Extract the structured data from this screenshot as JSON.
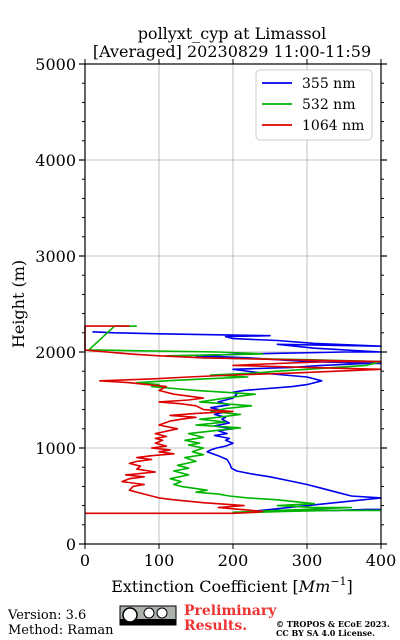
{
  "chart_data": {
    "type": "line",
    "title_line1": "pollyxt_cyp at Limassol",
    "title_line2": "[Averaged] 20230829 11:00-11:59",
    "xlabel_prefix": "Extinction Coefficient [",
    "xlabel_unit": "Mm",
    "xlabel_exp": "−1",
    "xlabel_suffix": "]",
    "ylabel": "Height (m)",
    "xlim": [
      0,
      400
    ],
    "ylim": [
      0,
      5000
    ],
    "x_ticks": [
      "0",
      "100",
      "200",
      "300",
      "400"
    ],
    "y_ticks": [
      "0",
      "1000",
      "2000",
      "3000",
      "4000",
      "5000"
    ],
    "grid": true,
    "legend_position": "top-right",
    "series": [
      {
        "name": "355 nm",
        "color": "#0000ee",
        "points": [
          [
            400,
            360
          ],
          [
            380,
            360
          ],
          [
            340,
            350
          ],
          [
            260,
            350
          ],
          [
            225,
            340
          ],
          [
            400,
            480
          ],
          [
            360,
            500
          ],
          [
            340,
            540
          ],
          [
            320,
            580
          ],
          [
            300,
            620
          ],
          [
            275,
            660
          ],
          [
            250,
            700
          ],
          [
            225,
            730
          ],
          [
            205,
            760
          ],
          [
            198,
            790
          ],
          [
            196,
            830
          ],
          [
            192,
            880
          ],
          [
            180,
            920
          ],
          [
            165,
            960
          ],
          [
            170,
            980
          ],
          [
            178,
            1000
          ],
          [
            190,
            1020
          ],
          [
            200,
            1050
          ],
          [
            190,
            1080
          ],
          [
            195,
            1100
          ],
          [
            175,
            1130
          ],
          [
            192,
            1150
          ],
          [
            180,
            1180
          ],
          [
            200,
            1200
          ],
          [
            175,
            1230
          ],
          [
            195,
            1260
          ],
          [
            185,
            1300
          ],
          [
            190,
            1320
          ],
          [
            175,
            1350
          ],
          [
            192,
            1380
          ],
          [
            170,
            1420
          ],
          [
            195,
            1450
          ],
          [
            180,
            1480
          ],
          [
            200,
            1520
          ],
          [
            205,
            1560
          ],
          [
            200,
            1580
          ],
          [
            215,
            1600
          ],
          [
            280,
            1640
          ],
          [
            300,
            1660
          ],
          [
            320,
            1700
          ],
          [
            300,
            1740
          ],
          [
            240,
            1780
          ],
          [
            200,
            1820
          ],
          [
            280,
            1840
          ],
          [
            320,
            1860
          ],
          [
            380,
            1880
          ],
          [
            400,
            1880
          ],
          [
            300,
            1900
          ],
          [
            220,
            1940
          ],
          [
            150,
            1960
          ],
          [
            220,
            1980
          ],
          [
            350,
            2000
          ],
          [
            400,
            2000
          ],
          [
            310,
            2040
          ],
          [
            260,
            2080
          ],
          [
            400,
            2060
          ],
          [
            310,
            2090
          ],
          [
            260,
            2120
          ],
          [
            200,
            2140
          ],
          [
            190,
            2160
          ],
          [
            250,
            2170
          ],
          [
            100,
            2190
          ],
          [
            40,
            2200
          ],
          [
            10,
            2210
          ]
        ]
      },
      {
        "name": "532 nm",
        "color": "#00b400",
        "points": [
          [
            400,
            350
          ],
          [
            330,
            350
          ],
          [
            270,
            340
          ],
          [
            230,
            330
          ],
          [
            200,
            330
          ],
          [
            360,
            380
          ],
          [
            310,
            380
          ],
          [
            260,
            400
          ],
          [
            310,
            420
          ],
          [
            260,
            460
          ],
          [
            220,
            480
          ],
          [
            195,
            500
          ],
          [
            180,
            520
          ],
          [
            150,
            540
          ],
          [
            165,
            560
          ],
          [
            130,
            600
          ],
          [
            120,
            620
          ],
          [
            130,
            650
          ],
          [
            115,
            680
          ],
          [
            140,
            720
          ],
          [
            120,
            760
          ],
          [
            140,
            790
          ],
          [
            125,
            820
          ],
          [
            150,
            860
          ],
          [
            135,
            900
          ],
          [
            160,
            930
          ],
          [
            145,
            960
          ],
          [
            160,
            1000
          ],
          [
            140,
            1030
          ],
          [
            155,
            1050
          ],
          [
            135,
            1080
          ],
          [
            160,
            1110
          ],
          [
            140,
            1150
          ],
          [
            175,
            1180
          ],
          [
            210,
            1210
          ],
          [
            150,
            1240
          ],
          [
            190,
            1270
          ],
          [
            155,
            1300
          ],
          [
            180,
            1320
          ],
          [
            210,
            1350
          ],
          [
            170,
            1380
          ],
          [
            190,
            1410
          ],
          [
            225,
            1440
          ],
          [
            155,
            1480
          ],
          [
            190,
            1520
          ],
          [
            230,
            1560
          ],
          [
            150,
            1600
          ],
          [
            120,
            1620
          ],
          [
            90,
            1640
          ],
          [
            100,
            1660
          ],
          [
            70,
            1680
          ],
          [
            110,
            1700
          ],
          [
            160,
            1720
          ],
          [
            220,
            1740
          ],
          [
            170,
            1760
          ],
          [
            230,
            1780
          ],
          [
            260,
            1800
          ],
          [
            300,
            1820
          ],
          [
            380,
            1860
          ],
          [
            400,
            1900
          ],
          [
            300,
            1920
          ],
          [
            160,
            1940
          ],
          [
            110,
            1960
          ],
          [
            240,
            1980
          ],
          [
            180,
            2000
          ],
          [
            20,
            2020
          ],
          [
            5,
            2020
          ],
          [
            40,
            2270
          ],
          [
            70,
            2270
          ]
        ]
      },
      {
        "name": "1064 nm",
        "color": "#dd0000",
        "points": [
          [
            0,
            320
          ],
          [
            200,
            320
          ],
          [
            230,
            330
          ],
          [
            240,
            340
          ],
          [
            210,
            360
          ],
          [
            180,
            380
          ],
          [
            215,
            400
          ],
          [
            160,
            430
          ],
          [
            120,
            460
          ],
          [
            100,
            480
          ],
          [
            80,
            520
          ],
          [
            60,
            560
          ],
          [
            65,
            600
          ],
          [
            80,
            620
          ],
          [
            50,
            650
          ],
          [
            60,
            680
          ],
          [
            80,
            700
          ],
          [
            55,
            720
          ],
          [
            95,
            750
          ],
          [
            70,
            780
          ],
          [
            75,
            810
          ],
          [
            60,
            840
          ],
          [
            70,
            860
          ],
          [
            90,
            880
          ],
          [
            70,
            900
          ],
          [
            90,
            920
          ],
          [
            120,
            940
          ],
          [
            100,
            960
          ],
          [
            115,
            980
          ],
          [
            90,
            1000
          ],
          [
            110,
            1020
          ],
          [
            95,
            1050
          ],
          [
            105,
            1080
          ],
          [
            95,
            1100
          ],
          [
            110,
            1120
          ],
          [
            95,
            1150
          ],
          [
            125,
            1200
          ],
          [
            100,
            1240
          ],
          [
            115,
            1280
          ],
          [
            130,
            1300
          ],
          [
            150,
            1320
          ],
          [
            115,
            1340
          ],
          [
            150,
            1360
          ],
          [
            200,
            1380
          ],
          [
            160,
            1400
          ],
          [
            150,
            1440
          ],
          [
            130,
            1460
          ],
          [
            100,
            1480
          ],
          [
            140,
            1500
          ],
          [
            160,
            1520
          ],
          [
            120,
            1560
          ],
          [
            100,
            1600
          ],
          [
            110,
            1640
          ],
          [
            60,
            1680
          ],
          [
            20,
            1700
          ],
          [
            90,
            1720
          ],
          [
            140,
            1740
          ],
          [
            200,
            1760
          ],
          [
            280,
            1780
          ],
          [
            340,
            1800
          ],
          [
            400,
            1820
          ],
          [
            300,
            1840
          ],
          [
            200,
            1860
          ],
          [
            260,
            1880
          ],
          [
            330,
            1900
          ],
          [
            400,
            1900
          ],
          [
            270,
            1920
          ],
          [
            160,
            1940
          ],
          [
            100,
            1960
          ],
          [
            60,
            1980
          ],
          [
            0,
            2020
          ],
          [
            0,
            2270
          ],
          [
            60,
            2270
          ]
        ]
      }
    ]
  },
  "footer": {
    "version": "Version: 3.6",
    "method": "Method: Raman",
    "preliminary_line1": "Preliminary",
    "preliminary_line2": "Results.",
    "copyright_line1": "© TROPOS & ECoE 2023.",
    "copyright_line2": "CC BY SA 4.0 License."
  }
}
